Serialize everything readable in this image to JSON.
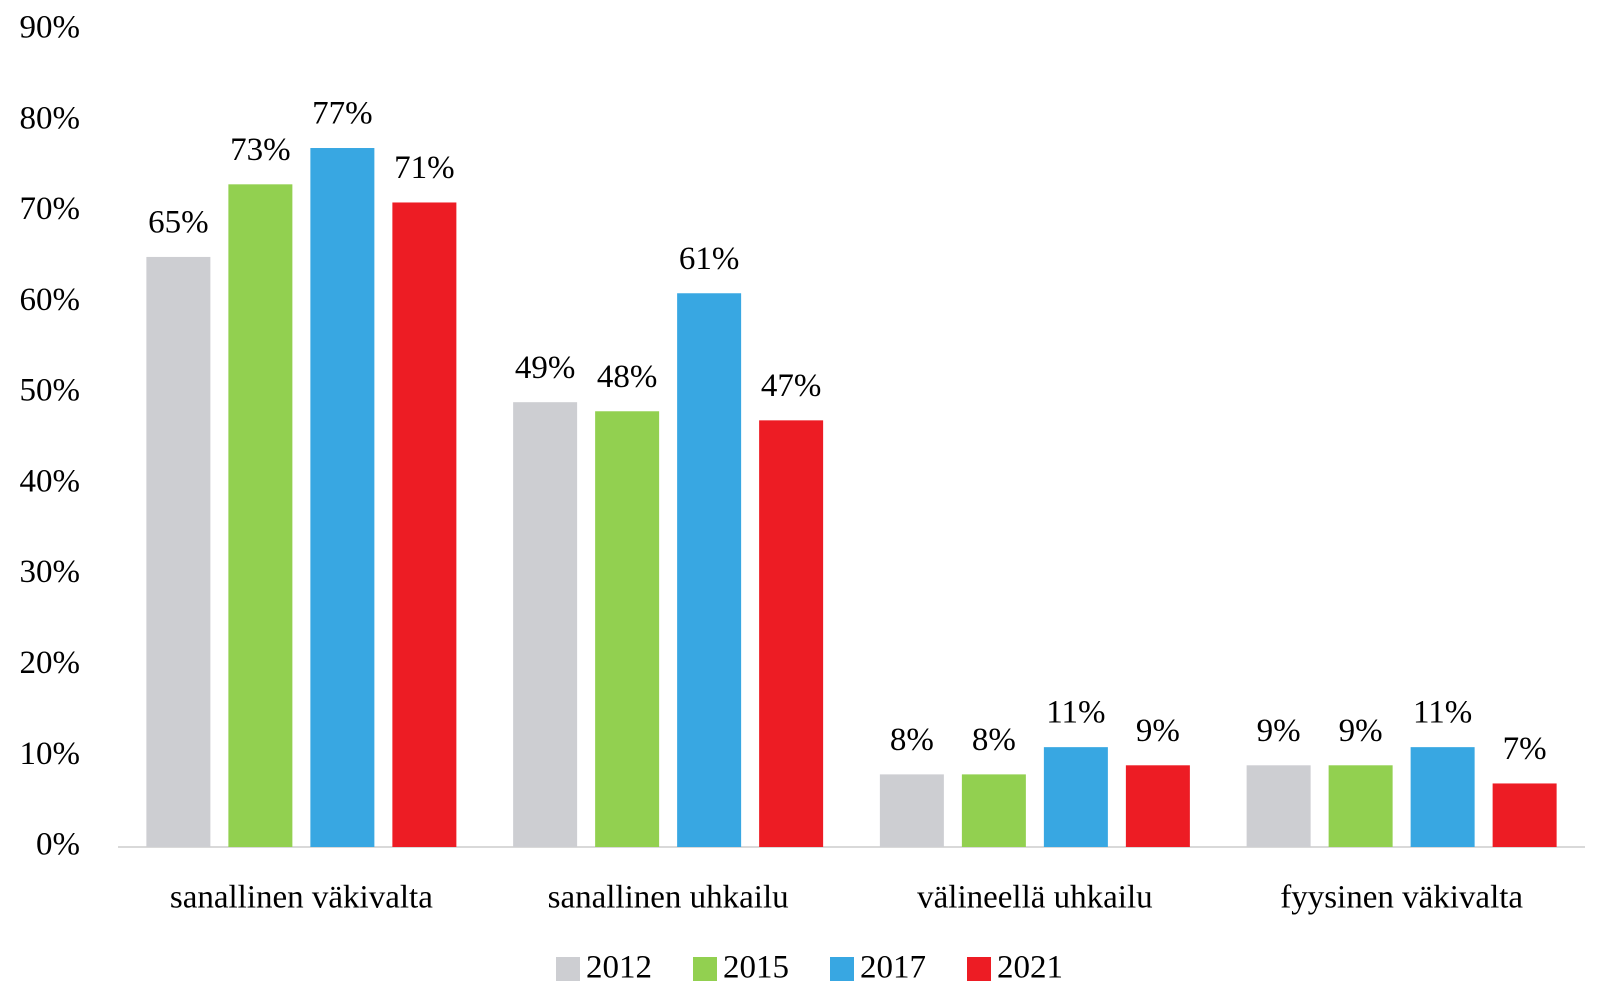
{
  "chart_data": {
    "type": "bar",
    "categories": [
      "sanallinen väkivalta",
      "sanallinen uhkailu",
      "välineellä uhkailu",
      "fyysinen väkivalta"
    ],
    "series": [
      {
        "name": "2012",
        "color": "#cdced2",
        "values": [
          65,
          49,
          8,
          9
        ],
        "value_labels": [
          "65%",
          "49%",
          "8%",
          "9%"
        ]
      },
      {
        "name": "2015",
        "color": "#92d050",
        "values": [
          73,
          48,
          8,
          9
        ],
        "value_labels": [
          "73%",
          "48%",
          "8%",
          "9%"
        ]
      },
      {
        "name": "2017",
        "color": "#38a7e2",
        "values": [
          77,
          61,
          11,
          11
        ],
        "value_labels": [
          "77%",
          "61%",
          "11%",
          "11%"
        ]
      },
      {
        "name": "2021",
        "color": "#ed1c24",
        "values": [
          71,
          47,
          9,
          7
        ],
        "value_labels": [
          "71%",
          "47%",
          "9%",
          "7%"
        ]
      }
    ],
    "ylim": [
      0,
      90
    ],
    "yticks": [
      {
        "value": 0,
        "label": "0%"
      },
      {
        "value": 10,
        "label": "10%"
      },
      {
        "value": 20,
        "label": "20%"
      },
      {
        "value": 30,
        "label": "30%"
      },
      {
        "value": 40,
        "label": "40%"
      },
      {
        "value": 50,
        "label": "50%"
      },
      {
        "value": 60,
        "label": "60%"
      },
      {
        "value": 70,
        "label": "70%"
      },
      {
        "value": 80,
        "label": "80%"
      },
      {
        "value": 90,
        "label": "90%"
      }
    ],
    "grid": false,
    "legend": "bottom"
  }
}
